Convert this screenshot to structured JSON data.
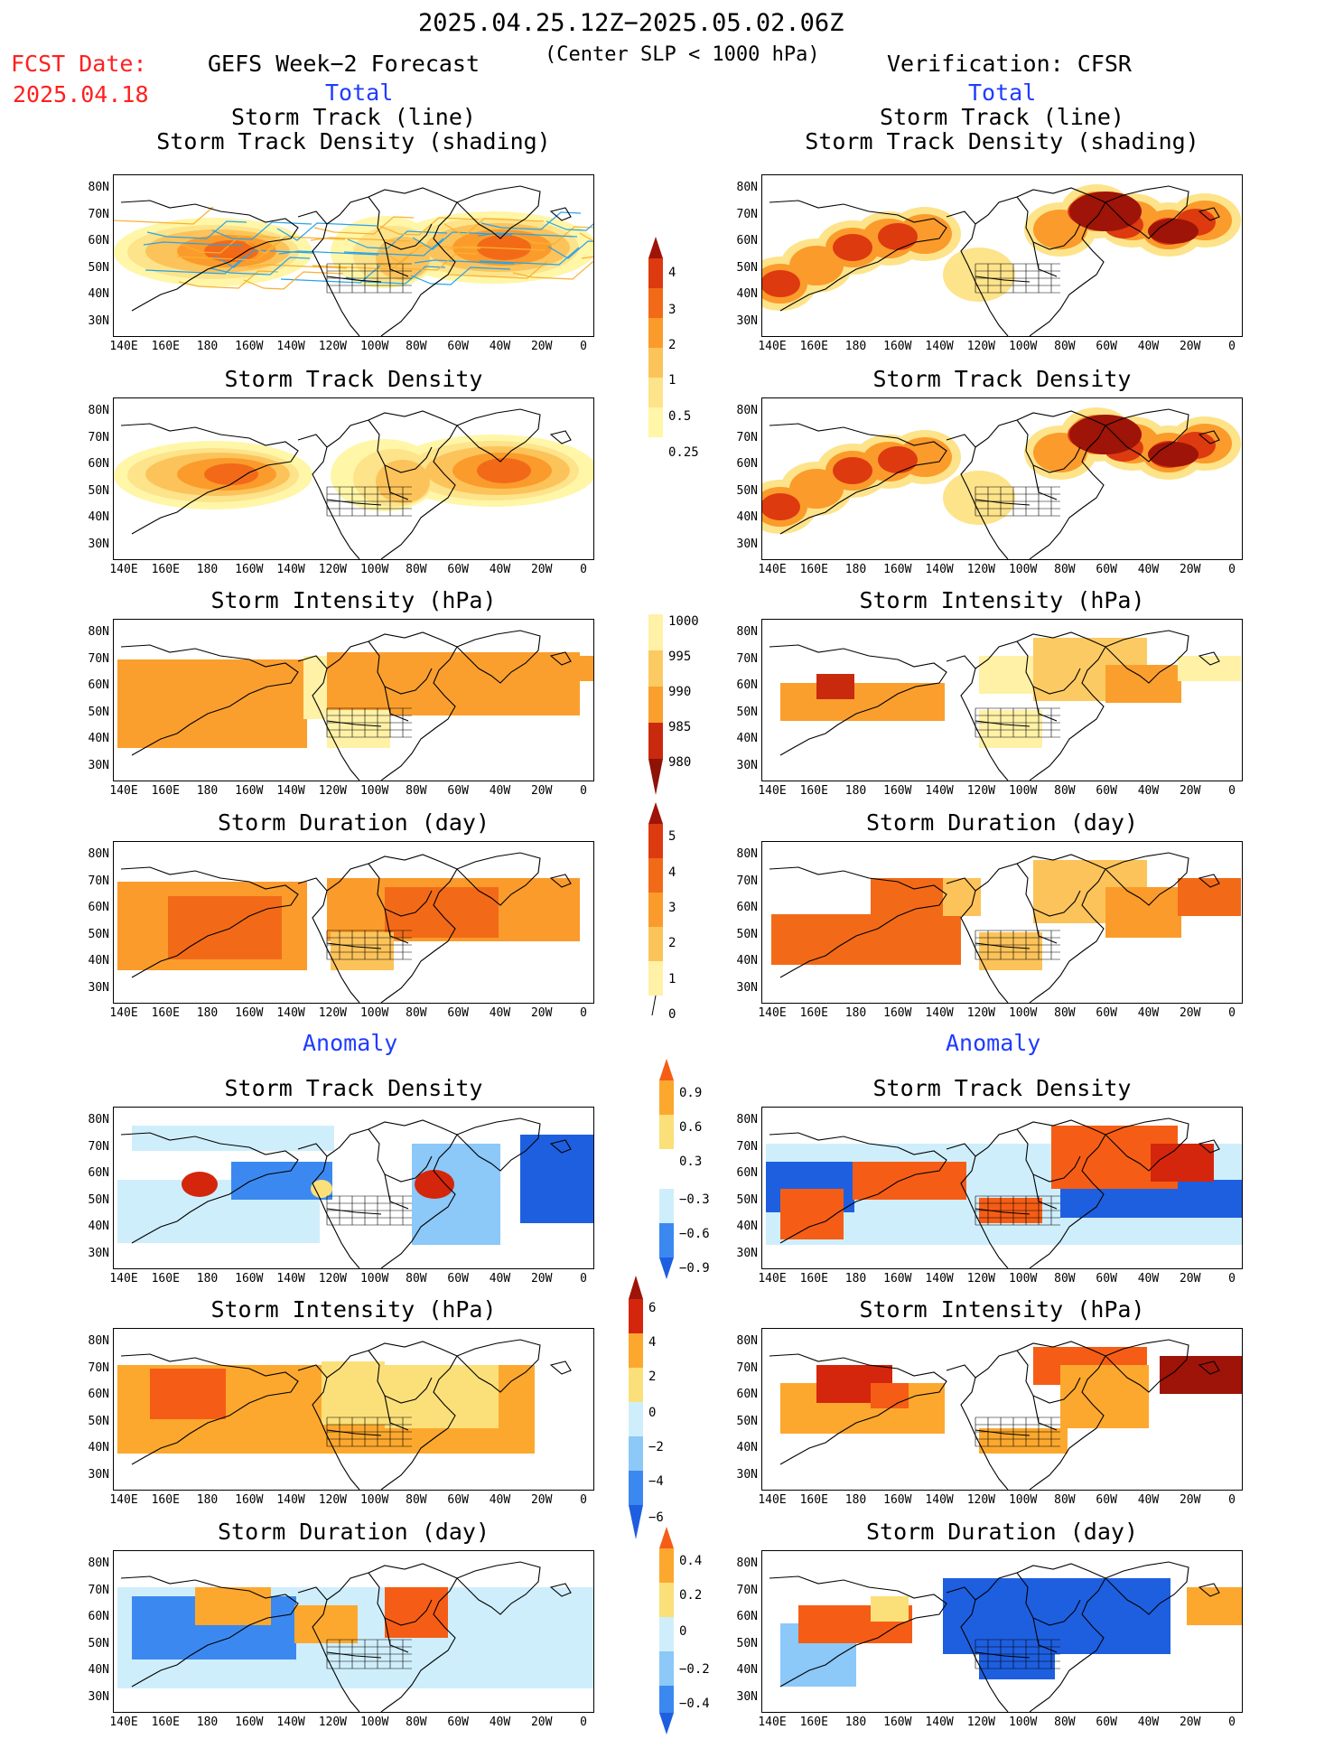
{
  "header": {
    "date_range": "2025.04.25.12Z−2025.05.02.06Z",
    "fcst_label": "FCST Date:",
    "fcst_date": "2025.04.18",
    "left_title": "GEFS Week−2 Forecast",
    "center_note": "(Center SLP < 1000 hPa)",
    "right_title": "Verification: CFSR",
    "total_label": "Total",
    "anomaly_label": "Anomaly"
  },
  "panel_titles": {
    "track_line": "Storm Track (line)",
    "track_shading": "Storm Track Density (shading)",
    "density": "Storm Track Density",
    "intensity": "Storm Intensity (hPa)",
    "duration": "Storm Duration (day)"
  },
  "axes": {
    "lat_labels": [
      "80N",
      "70N",
      "60N",
      "50N",
      "40N",
      "30N"
    ],
    "lon_labels": [
      "140E",
      "160E",
      "180",
      "160W",
      "140W",
      "120W",
      "100W",
      "80W",
      "60W",
      "40W",
      "20W",
      "0"
    ]
  },
  "colorbars": {
    "density": [
      "4",
      "3",
      "2",
      "1",
      "0.5",
      "0.25"
    ],
    "intensity": [
      "1000",
      "995",
      "990",
      "985",
      "980"
    ],
    "duration": [
      "5",
      "4",
      "3",
      "2",
      "1",
      "0"
    ],
    "density_anom": [
      "0.9",
      "0.6",
      "0.3",
      "−0.3",
      "−0.6",
      "−0.9"
    ],
    "intensity_anom": [
      "6",
      "4",
      "2",
      "0",
      "−2",
      "−4",
      "−6"
    ],
    "duration_anom": [
      "0.4",
      "0.2",
      "0",
      "−0.2",
      "−0.4"
    ]
  },
  "colors": {
    "dens_scale": [
      "#fff6a8",
      "#fde38a",
      "#fcc35a",
      "#fb9b2b",
      "#f26a18",
      "#dd3a10",
      "#9e1408"
    ],
    "int_scale": [
      "#fff1a6",
      "#fcca62",
      "#fa9f2e",
      "#f07a1e",
      "#c92a0e",
      "#8e1206"
    ],
    "anom_neg": [
      "#1e5fe0",
      "#3b89f0",
      "#8cc8f8",
      "#cfeefb"
    ],
    "anom_pos": [
      "#fbe07a",
      "#fca82e",
      "#f55d16",
      "#d4260c",
      "#9e1408"
    ],
    "track_blue": "#29a3e8",
    "track_orange": "#fbb030",
    "title_blue": "#1f3cff",
    "fcst_red": "#ff2020"
  }
}
